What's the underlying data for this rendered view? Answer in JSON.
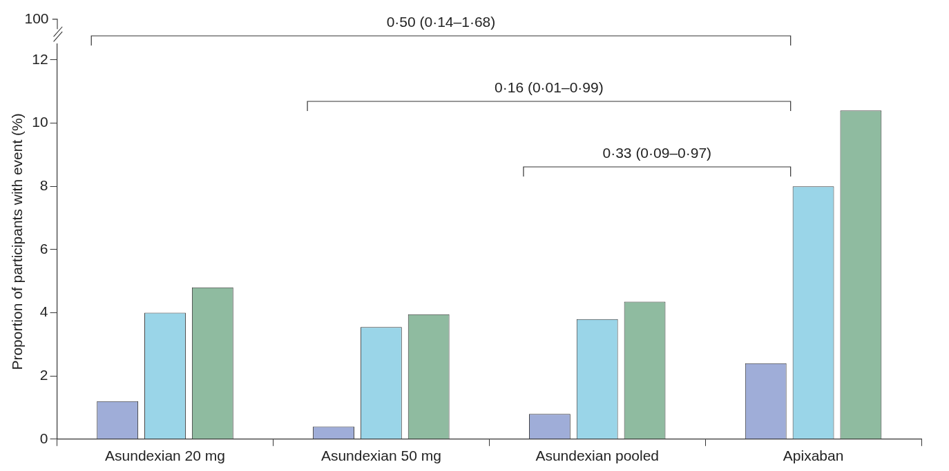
{
  "chart_data": {
    "type": "bar",
    "ylabel": "Proportion of participants with event (%)",
    "categories": [
      "Asundexian 20 mg",
      "Asundexian 50 mg",
      "Asundexian pooled",
      "Apixaban"
    ],
    "series": [
      {
        "color": "#9fadd8",
        "values": [
          1.2,
          0.4,
          0.8,
          2.4
        ]
      },
      {
        "color": "#9ad5e8",
        "values": [
          4.0,
          3.55,
          3.8,
          8.0
        ]
      },
      {
        "color": "#8fbba0",
        "values": [
          4.8,
          3.95,
          4.35,
          10.4
        ]
      }
    ],
    "ylim": [
      0,
      12.5
    ],
    "yticks": [
      0,
      2,
      4,
      6,
      8,
      10,
      12
    ],
    "grid": false,
    "legend": false,
    "annotations": [
      "100",
      "0·50 (0·14–1·68)",
      "0·16 (0·01–0·99)",
      "0·33 (0·09–0·97)"
    ]
  }
}
